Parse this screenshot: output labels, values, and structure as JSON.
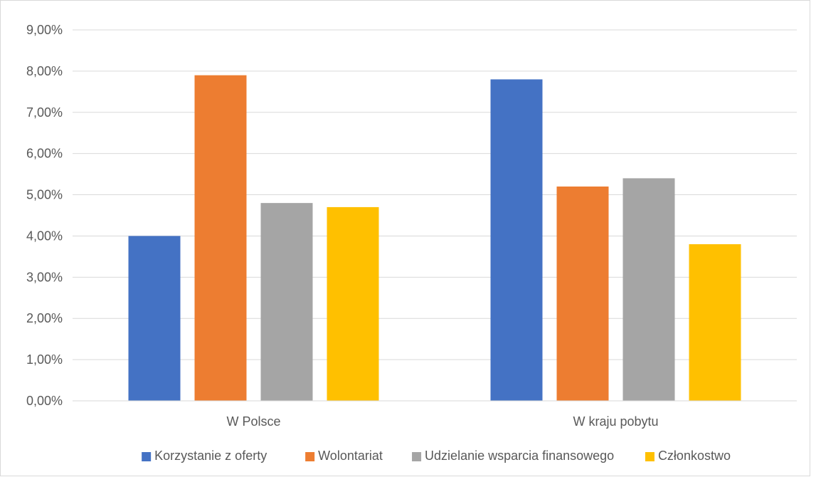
{
  "chart_data": {
    "type": "bar",
    "title": "",
    "xlabel": "",
    "ylabel": "",
    "categories": [
      "W Polsce",
      "W kraju pobytu"
    ],
    "series": [
      {
        "name": "Korzystanie z oferty",
        "values": [
          4.0,
          7.8
        ],
        "color": "#4472c4"
      },
      {
        "name": "Wolontariat",
        "values": [
          7.9,
          5.2
        ],
        "color": "#ed7d31"
      },
      {
        "name": "Udzielanie wsparcia finansowego",
        "values": [
          4.8,
          5.4
        ],
        "color": "#a5a5a5"
      },
      {
        "name": "Członkostwo",
        "values": [
          4.7,
          3.8
        ],
        "color": "#ffc000"
      }
    ],
    "ylim": [
      0,
      9
    ],
    "y_ticks": [
      "0,00%",
      "1,00%",
      "2,00%",
      "3,00%",
      "4,00%",
      "5,00%",
      "6,00%",
      "7,00%",
      "8,00%",
      "9,00%"
    ],
    "grid": true,
    "legend_position": "bottom"
  }
}
